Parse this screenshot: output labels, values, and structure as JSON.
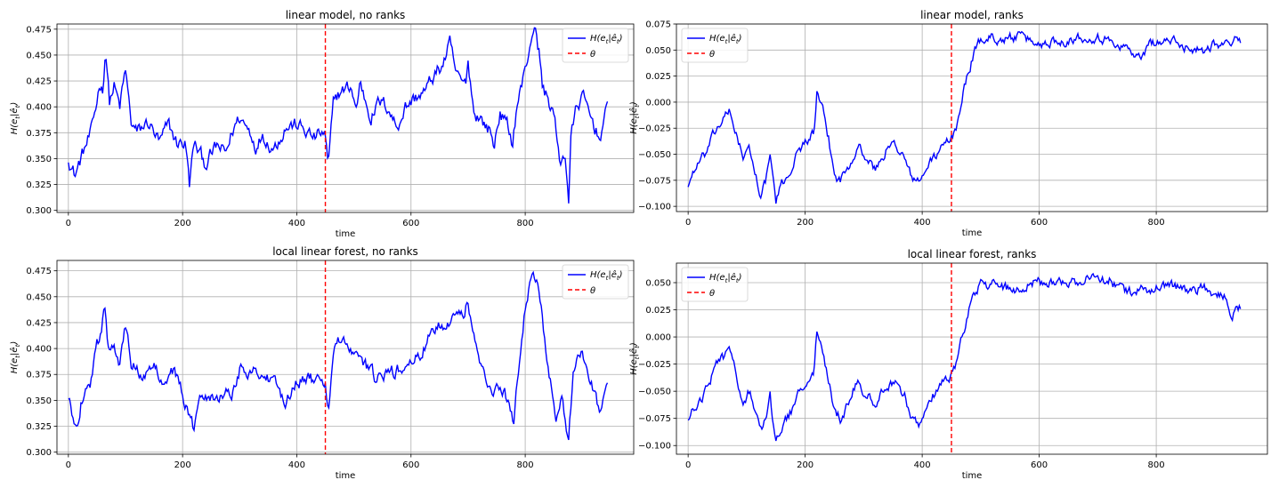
{
  "legend_labels": {
    "series": "H(e_t|ê_t)",
    "threshold": "θ"
  },
  "colors": {
    "series": "#0000ff",
    "threshold": "#ff0000",
    "grid": "#b0b0b0"
  },
  "chart_data": [
    {
      "type": "line",
      "title": "linear model, no ranks",
      "xlabel": "time",
      "ylabel": "H(e_t|ê_t)",
      "xlim": [
        -20,
        990
      ],
      "ylim": [
        0.298,
        0.48
      ],
      "xticks": [
        0,
        200,
        400,
        600,
        800
      ],
      "yticks": [
        0.3,
        0.325,
        0.35,
        0.375,
        0.4,
        0.425,
        0.45,
        0.475
      ],
      "ytick_labels": [
        "0.300",
        "0.325",
        "0.350",
        "0.375",
        "0.400",
        "0.425",
        "0.450",
        "0.475"
      ],
      "grid": true,
      "legend_position": "top-right",
      "threshold_x": 450,
      "noise": 0.012,
      "anchors": [
        [
          0,
          0.352
        ],
        [
          5,
          0.342
        ],
        [
          12,
          0.334
        ],
        [
          25,
          0.355
        ],
        [
          40,
          0.375
        ],
        [
          50,
          0.405
        ],
        [
          55,
          0.425
        ],
        [
          60,
          0.415
        ],
        [
          65,
          0.458
        ],
        [
          72,
          0.405
        ],
        [
          80,
          0.42
        ],
        [
          90,
          0.4
        ],
        [
          100,
          0.435
        ],
        [
          110,
          0.385
        ],
        [
          120,
          0.375
        ],
        [
          140,
          0.385
        ],
        [
          160,
          0.365
        ],
        [
          175,
          0.383
        ],
        [
          190,
          0.365
        ],
        [
          205,
          0.365
        ],
        [
          212,
          0.325
        ],
        [
          220,
          0.365
        ],
        [
          240,
          0.345
        ],
        [
          260,
          0.362
        ],
        [
          275,
          0.355
        ],
        [
          290,
          0.38
        ],
        [
          300,
          0.39
        ],
        [
          320,
          0.375
        ],
        [
          330,
          0.36
        ],
        [
          340,
          0.375
        ],
        [
          350,
          0.365
        ],
        [
          360,
          0.36
        ],
        [
          380,
          0.38
        ],
        [
          400,
          0.383
        ],
        [
          430,
          0.37
        ],
        [
          445,
          0.375
        ],
        [
          450,
          0.37
        ],
        [
          455,
          0.34
        ],
        [
          465,
          0.41
        ],
        [
          480,
          0.415
        ],
        [
          495,
          0.42
        ],
        [
          505,
          0.395
        ],
        [
          510,
          0.425
        ],
        [
          530,
          0.39
        ],
        [
          545,
          0.405
        ],
        [
          560,
          0.4
        ],
        [
          575,
          0.38
        ],
        [
          590,
          0.4
        ],
        [
          610,
          0.41
        ],
        [
          625,
          0.415
        ],
        [
          640,
          0.43
        ],
        [
          655,
          0.44
        ],
        [
          668,
          0.46
        ],
        [
          680,
          0.43
        ],
        [
          695,
          0.42
        ],
        [
          700,
          0.445
        ],
        [
          710,
          0.395
        ],
        [
          720,
          0.39
        ],
        [
          740,
          0.375
        ],
        [
          745,
          0.36
        ],
        [
          755,
          0.395
        ],
        [
          770,
          0.38
        ],
        [
          778,
          0.365
        ],
        [
          785,
          0.4
        ],
        [
          800,
          0.435
        ],
        [
          815,
          0.48
        ],
        [
          825,
          0.45
        ],
        [
          830,
          0.42
        ],
        [
          850,
          0.395
        ],
        [
          860,
          0.345
        ],
        [
          870,
          0.355
        ],
        [
          876,
          0.31
        ],
        [
          880,
          0.37
        ],
        [
          890,
          0.4
        ],
        [
          900,
          0.41
        ],
        [
          915,
          0.39
        ],
        [
          930,
          0.37
        ],
        [
          945,
          0.4
        ]
      ]
    },
    {
      "type": "line",
      "title": "linear model, ranks",
      "xlabel": "time",
      "ylabel": "H(e_t|ê_t)",
      "xlim": [
        -20,
        990
      ],
      "ylim": [
        -0.105,
        0.075
      ],
      "xticks": [
        0,
        200,
        400,
        600,
        800
      ],
      "yticks": [
        -0.1,
        -0.075,
        -0.05,
        -0.025,
        0.0,
        0.025,
        0.05,
        0.075
      ],
      "ytick_labels": [
        "−0.100",
        "−0.075",
        "−0.050",
        "−0.025",
        "0.000",
        "0.025",
        "0.050",
        "0.075"
      ],
      "grid": true,
      "legend_position": "top-left",
      "threshold_x": 450,
      "noise": 0.008,
      "anchors": [
        [
          0,
          -0.08
        ],
        [
          10,
          -0.065
        ],
        [
          30,
          -0.05
        ],
        [
          45,
          -0.03
        ],
        [
          55,
          -0.02
        ],
        [
          70,
          -0.01
        ],
        [
          80,
          -0.025
        ],
        [
          95,
          -0.055
        ],
        [
          105,
          -0.045
        ],
        [
          115,
          -0.07
        ],
        [
          125,
          -0.09
        ],
        [
          135,
          -0.07
        ],
        [
          140,
          -0.05
        ],
        [
          150,
          -0.095
        ],
        [
          160,
          -0.08
        ],
        [
          175,
          -0.065
        ],
        [
          190,
          -0.045
        ],
        [
          205,
          -0.035
        ],
        [
          215,
          -0.03
        ],
        [
          220,
          0.008
        ],
        [
          230,
          -0.01
        ],
        [
          240,
          -0.035
        ],
        [
          250,
          -0.07
        ],
        [
          260,
          -0.075
        ],
        [
          275,
          -0.06
        ],
        [
          290,
          -0.04
        ],
        [
          305,
          -0.055
        ],
        [
          320,
          -0.065
        ],
        [
          340,
          -0.045
        ],
        [
          355,
          -0.04
        ],
        [
          370,
          -0.055
        ],
        [
          380,
          -0.07
        ],
        [
          395,
          -0.078
        ],
        [
          410,
          -0.06
        ],
        [
          425,
          -0.05
        ],
        [
          440,
          -0.04
        ],
        [
          450,
          -0.035
        ],
        [
          460,
          -0.02
        ],
        [
          470,
          0.01
        ],
        [
          480,
          0.03
        ],
        [
          490,
          0.05
        ],
        [
          500,
          0.06
        ],
        [
          520,
          0.062
        ],
        [
          540,
          0.06
        ],
        [
          560,
          0.063
        ],
        [
          580,
          0.06
        ],
        [
          600,
          0.055
        ],
        [
          620,
          0.058
        ],
        [
          650,
          0.06
        ],
        [
          670,
          0.062
        ],
        [
          700,
          0.063
        ],
        [
          720,
          0.058
        ],
        [
          740,
          0.055
        ],
        [
          760,
          0.048
        ],
        [
          775,
          0.04
        ],
        [
          790,
          0.058
        ],
        [
          805,
          0.057
        ],
        [
          820,
          0.06
        ],
        [
          840,
          0.055
        ],
        [
          860,
          0.052
        ],
        [
          880,
          0.05
        ],
        [
          900,
          0.057
        ],
        [
          920,
          0.055
        ],
        [
          930,
          0.06
        ],
        [
          945,
          0.058
        ]
      ]
    },
    {
      "type": "line",
      "title": "local linear forest, no ranks",
      "xlabel": "time",
      "ylabel": "H(e_t|ê_t)",
      "xlim": [
        -20,
        990
      ],
      "ylim": [
        0.298,
        0.485
      ],
      "xticks": [
        0,
        200,
        400,
        600,
        800
      ],
      "yticks": [
        0.3,
        0.325,
        0.35,
        0.375,
        0.4,
        0.425,
        0.45,
        0.475
      ],
      "ytick_labels": [
        "0.300",
        "0.325",
        "0.350",
        "0.375",
        "0.400",
        "0.425",
        "0.450",
        "0.475"
      ],
      "grid": true,
      "legend_position": "top-right",
      "threshold_x": 450,
      "noise": 0.011,
      "anchors": [
        [
          0,
          0.35
        ],
        [
          8,
          0.333
        ],
        [
          15,
          0.33
        ],
        [
          25,
          0.355
        ],
        [
          40,
          0.37
        ],
        [
          50,
          0.4
        ],
        [
          58,
          0.42
        ],
        [
          63,
          0.45
        ],
        [
          70,
          0.4
        ],
        [
          80,
          0.41
        ],
        [
          90,
          0.385
        ],
        [
          100,
          0.42
        ],
        [
          110,
          0.385
        ],
        [
          130,
          0.375
        ],
        [
          150,
          0.38
        ],
        [
          170,
          0.37
        ],
        [
          185,
          0.38
        ],
        [
          200,
          0.355
        ],
        [
          212,
          0.335
        ],
        [
          220,
          0.32
        ],
        [
          230,
          0.36
        ],
        [
          250,
          0.355
        ],
        [
          270,
          0.355
        ],
        [
          290,
          0.36
        ],
        [
          300,
          0.38
        ],
        [
          320,
          0.38
        ],
        [
          340,
          0.375
        ],
        [
          360,
          0.365
        ],
        [
          380,
          0.35
        ],
        [
          400,
          0.37
        ],
        [
          430,
          0.37
        ],
        [
          445,
          0.365
        ],
        [
          450,
          0.37
        ],
        [
          455,
          0.34
        ],
        [
          465,
          0.4
        ],
        [
          480,
          0.41
        ],
        [
          500,
          0.39
        ],
        [
          520,
          0.385
        ],
        [
          540,
          0.37
        ],
        [
          560,
          0.375
        ],
        [
          580,
          0.38
        ],
        [
          600,
          0.385
        ],
        [
          620,
          0.395
        ],
        [
          640,
          0.42
        ],
        [
          660,
          0.425
        ],
        [
          680,
          0.435
        ],
        [
          690,
          0.43
        ],
        [
          700,
          0.445
        ],
        [
          715,
          0.395
        ],
        [
          730,
          0.375
        ],
        [
          745,
          0.36
        ],
        [
          760,
          0.36
        ],
        [
          770,
          0.35
        ],
        [
          780,
          0.33
        ],
        [
          790,
          0.39
        ],
        [
          800,
          0.44
        ],
        [
          815,
          0.475
        ],
        [
          825,
          0.45
        ],
        [
          840,
          0.38
        ],
        [
          855,
          0.33
        ],
        [
          865,
          0.35
        ],
        [
          876,
          0.31
        ],
        [
          885,
          0.38
        ],
        [
          900,
          0.4
        ],
        [
          915,
          0.37
        ],
        [
          930,
          0.34
        ],
        [
          945,
          0.365
        ]
      ]
    },
    {
      "type": "line",
      "title": "local linear forest, ranks",
      "xlabel": "time",
      "ylabel": "H(e_t|ê_t)",
      "xlim": [
        -20,
        990
      ],
      "ylim": [
        -0.108,
        0.068
      ],
      "xticks": [
        0,
        200,
        400,
        600,
        800
      ],
      "yticks": [
        -0.1,
        -0.075,
        -0.05,
        -0.025,
        0.0,
        0.025,
        0.05
      ],
      "ytick_labels": [
        "−0.100",
        "−0.075",
        "−0.050",
        "−0.025",
        "0.000",
        "0.025",
        "0.050"
      ],
      "grid": true,
      "legend_position": "top-left",
      "threshold_x": 450,
      "noise": 0.008,
      "anchors": [
        [
          0,
          -0.08
        ],
        [
          10,
          -0.065
        ],
        [
          30,
          -0.05
        ],
        [
          45,
          -0.03
        ],
        [
          55,
          -0.02
        ],
        [
          70,
          -0.015
        ],
        [
          80,
          -0.03
        ],
        [
          95,
          -0.06
        ],
        [
          105,
          -0.05
        ],
        [
          115,
          -0.07
        ],
        [
          125,
          -0.085
        ],
        [
          135,
          -0.07
        ],
        [
          140,
          -0.055
        ],
        [
          150,
          -0.098
        ],
        [
          160,
          -0.085
        ],
        [
          175,
          -0.07
        ],
        [
          190,
          -0.05
        ],
        [
          205,
          -0.035
        ],
        [
          215,
          -0.03
        ],
        [
          220,
          0.005
        ],
        [
          230,
          -0.015
        ],
        [
          240,
          -0.04
        ],
        [
          250,
          -0.07
        ],
        [
          260,
          -0.075
        ],
        [
          275,
          -0.06
        ],
        [
          290,
          -0.04
        ],
        [
          305,
          -0.055
        ],
        [
          320,
          -0.06
        ],
        [
          340,
          -0.045
        ],
        [
          355,
          -0.04
        ],
        [
          370,
          -0.055
        ],
        [
          380,
          -0.07
        ],
        [
          395,
          -0.08
        ],
        [
          410,
          -0.06
        ],
        [
          425,
          -0.05
        ],
        [
          440,
          -0.04
        ],
        [
          450,
          -0.035
        ],
        [
          460,
          -0.02
        ],
        [
          470,
          0.005
        ],
        [
          480,
          0.025
        ],
        [
          490,
          0.04
        ],
        [
          500,
          0.05
        ],
        [
          520,
          0.048
        ],
        [
          540,
          0.045
        ],
        [
          560,
          0.043
        ],
        [
          580,
          0.048
        ],
        [
          600,
          0.05
        ],
        [
          620,
          0.052
        ],
        [
          650,
          0.05
        ],
        [
          670,
          0.052
        ],
        [
          700,
          0.055
        ],
        [
          720,
          0.052
        ],
        [
          740,
          0.045
        ],
        [
          760,
          0.04
        ],
        [
          780,
          0.043
        ],
        [
          800,
          0.045
        ],
        [
          820,
          0.05
        ],
        [
          840,
          0.045
        ],
        [
          860,
          0.04
        ],
        [
          880,
          0.045
        ],
        [
          900,
          0.04
        ],
        [
          920,
          0.035
        ],
        [
          930,
          0.02
        ],
        [
          945,
          0.03
        ]
      ]
    }
  ]
}
